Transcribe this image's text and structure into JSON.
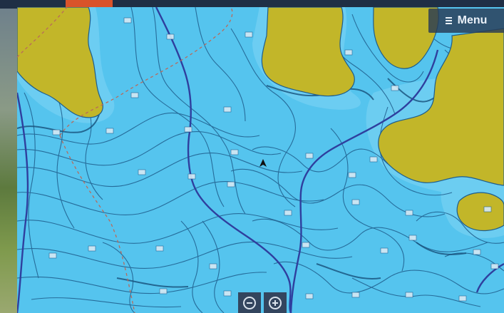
{
  "map": {
    "water_color": "#55c4ee",
    "land_color": "#c2b629",
    "contour_color": "#1e5d8c",
    "channel_color": "#2f3f9e"
  },
  "controls": {
    "menu_label": "Menu",
    "menu_icon": "hamburger-icon",
    "zoom_out_icon": "zoom-out-icon",
    "zoom_in_icon": "zoom-in-icon"
  },
  "vessel": {
    "icon": "vessel-position-icon"
  }
}
